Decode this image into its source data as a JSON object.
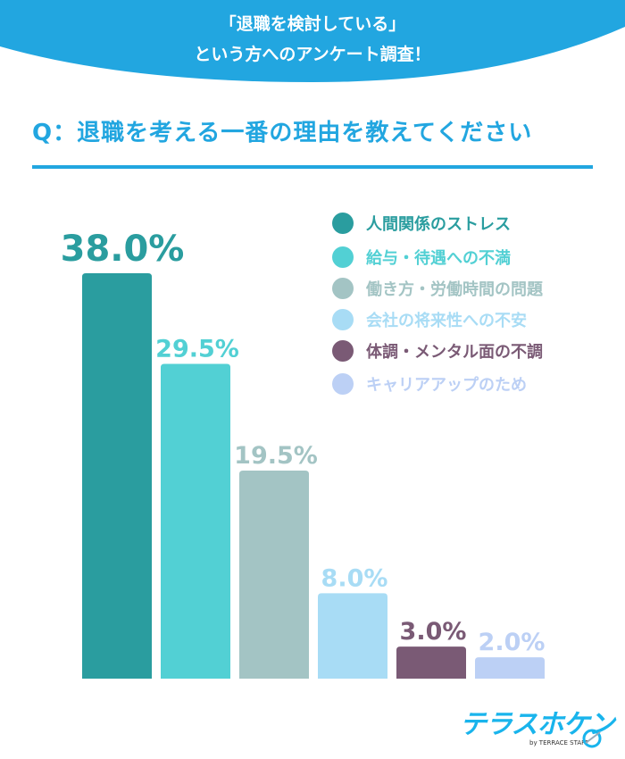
{
  "header": {
    "line1": "「退職を検討している」",
    "line2": "という方へのアンケート調査！",
    "color": "#22a6e0"
  },
  "question": "Q：退職を考える一番の理由を教えてください",
  "chart_data": {
    "type": "bar",
    "title": "Q：退職を考える一番の理由を教えてください",
    "categories": [
      "人間関係のストレス",
      "給与・待遇への不満",
      "働き方・労働時間の問題",
      "会社の将来性への不安",
      "体調・メンタル面の不調",
      "キャリアアップのため"
    ],
    "values": [
      38.0,
      29.5,
      19.5,
      8.0,
      3.0,
      2.0
    ],
    "labels": [
      "38.0%",
      "29.5%",
      "19.5%",
      "8.0%",
      "3.0%",
      "2.0%"
    ],
    "colors": [
      "#2a9d9f",
      "#52d0d4",
      "#a3c4c4",
      "#a8dcf5",
      "#7a5a75",
      "#bcd0f5"
    ],
    "ylim": [
      0,
      38
    ],
    "grid": false,
    "legend_position": "top-right"
  },
  "logo": {
    "name": "テラスホケン",
    "sub": "by TERRACE STAFF"
  }
}
